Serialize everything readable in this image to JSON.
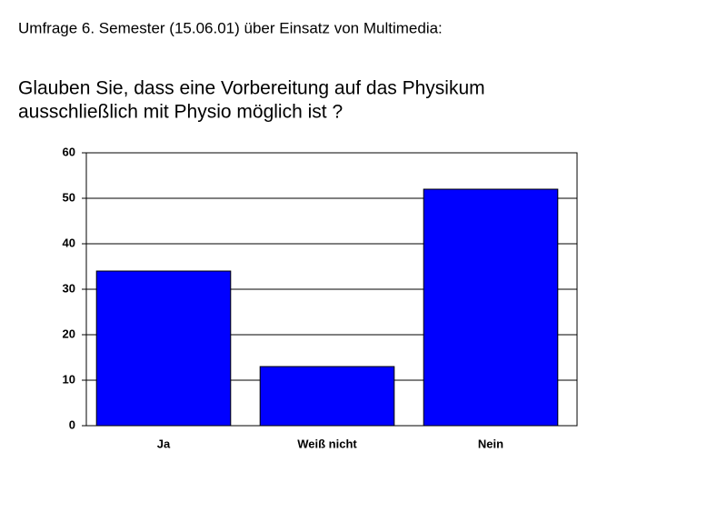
{
  "chart_data": {
    "type": "bar",
    "header": "Umfrage 6. Semester (15.06.01) über Einsatz von Multimedia:",
    "title": [
      "Glauben Sie, dass eine Vorbereitung auf das Physikum",
      "ausschließlich mit Physio möglich ist ?"
    ],
    "categories": [
      "Ja",
      "Weiß nicht",
      "Nein"
    ],
    "values": [
      34,
      13,
      52
    ],
    "color": "#0000ff",
    "ylim": [
      0,
      60
    ],
    "yticks": [
      0,
      10,
      20,
      30,
      40,
      50,
      60
    ],
    "grid": true
  }
}
